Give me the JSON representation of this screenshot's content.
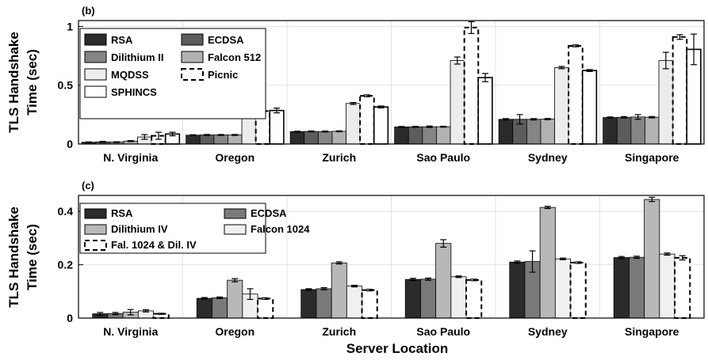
{
  "xlabel": "Server Location",
  "chart_data": [
    {
      "type": "bar",
      "panel_label": "(b)",
      "ylabel": [
        "TLS Handshake",
        "Time (sec)"
      ],
      "ylim": [
        0,
        1.05
      ],
      "yticks": [
        0,
        0.5,
        1
      ],
      "ytick_labels": [
        "0",
        "0.5",
        "1"
      ],
      "legend_position": "top-left",
      "legend_columns": 2,
      "categories": [
        "N. Virginia",
        "Oregon",
        "Zurich",
        "Sao Paulo",
        "Sydney",
        "Singapore"
      ],
      "series": [
        {
          "name": "RSA",
          "color": "#2b2b2b",
          "style": "solid",
          "values": [
            0.015,
            0.075,
            0.105,
            0.145,
            0.21,
            0.225
          ],
          "errors": [
            0.003,
            0.004,
            0.004,
            0.004,
            0.006,
            0.005
          ]
        },
        {
          "name": "ECDSA",
          "color": "#5c5c5c",
          "style": "solid",
          "values": [
            0.018,
            0.077,
            0.107,
            0.146,
            0.21,
            0.227
          ],
          "errors": [
            0.004,
            0.004,
            0.004,
            0.004,
            0.04,
            0.006
          ]
        },
        {
          "name": "Dilithium II",
          "color": "#858585",
          "style": "solid",
          "values": [
            0.016,
            0.077,
            0.106,
            0.147,
            0.21,
            0.23
          ],
          "errors": [
            0.003,
            0.004,
            0.004,
            0.006,
            0.006,
            0.02
          ]
        },
        {
          "name": "Falcon 512",
          "color": "#b2b2b2",
          "style": "solid",
          "values": [
            0.025,
            0.077,
            0.108,
            0.147,
            0.212,
            0.228
          ],
          "errors": [
            0.004,
            0.004,
            0.004,
            0.004,
            0.005,
            0.006
          ]
        },
        {
          "name": "MQDSS",
          "color": "#ececec",
          "style": "solid",
          "values": [
            0.06,
            0.355,
            0.345,
            0.71,
            0.65,
            0.71
          ],
          "errors": [
            0.02,
            0.025,
            0.008,
            0.03,
            0.01,
            0.07
          ]
        },
        {
          "name": "Picnic",
          "color": "#ffffff",
          "style": "dashed",
          "values": [
            0.07,
            0.28,
            0.41,
            0.99,
            0.835,
            0.91
          ],
          "errors": [
            0.03,
            0.01,
            0.008,
            0.05,
            0.008,
            0.02
          ]
        },
        {
          "name": "SPHINCS",
          "color": "#ffffff",
          "style": "solid",
          "values": [
            0.085,
            0.285,
            0.315,
            0.565,
            0.625,
            0.805
          ],
          "errors": [
            0.015,
            0.02,
            0.008,
            0.035,
            0.008,
            0.13
          ]
        }
      ]
    },
    {
      "type": "bar",
      "panel_label": "(c)",
      "ylabel": [
        "TLS Handshake",
        "Time (sec)"
      ],
      "ylim": [
        0,
        0.46
      ],
      "yticks": [
        0,
        0.2,
        0.4
      ],
      "ytick_labels": [
        "0",
        "0.2",
        "0.4"
      ],
      "legend_position": "top-left",
      "legend_columns": 2,
      "categories": [
        "N. Virginia",
        "Oregon",
        "Zurich",
        "Sao Paulo",
        "Sydney",
        "Singapore"
      ],
      "series": [
        {
          "name": "RSA",
          "color": "#2b2b2b",
          "style": "solid",
          "values": [
            0.016,
            0.074,
            0.107,
            0.145,
            0.21,
            0.227
          ],
          "errors": [
            0.005,
            0.003,
            0.003,
            0.004,
            0.004,
            0.004
          ]
        },
        {
          "name": "ECDSA",
          "color": "#7a7a7a",
          "style": "solid",
          "values": [
            0.017,
            0.076,
            0.11,
            0.146,
            0.212,
            0.228
          ],
          "errors": [
            0.004,
            0.003,
            0.004,
            0.004,
            0.04,
            0.004
          ]
        },
        {
          "name": "Dilithium IV",
          "color": "#b8b8b8",
          "style": "solid",
          "values": [
            0.022,
            0.142,
            0.207,
            0.28,
            0.415,
            0.445
          ],
          "errors": [
            0.01,
            0.006,
            0.004,
            0.014,
            0.004,
            0.008
          ]
        },
        {
          "name": "Falcon 1024",
          "color": "#f0f0f0",
          "style": "solid",
          "values": [
            0.027,
            0.09,
            0.12,
            0.155,
            0.222,
            0.24
          ],
          "errors": [
            0.004,
            0.02,
            0.003,
            0.003,
            0.003,
            0.004
          ]
        },
        {
          "name": "Fal. 1024 & Dil. IV",
          "color": "#ffffff",
          "style": "dashed",
          "values": [
            0.016,
            0.073,
            0.105,
            0.143,
            0.208,
            0.226
          ],
          "errors": [
            0.002,
            0.003,
            0.003,
            0.003,
            0.003,
            0.008
          ]
        }
      ]
    }
  ]
}
